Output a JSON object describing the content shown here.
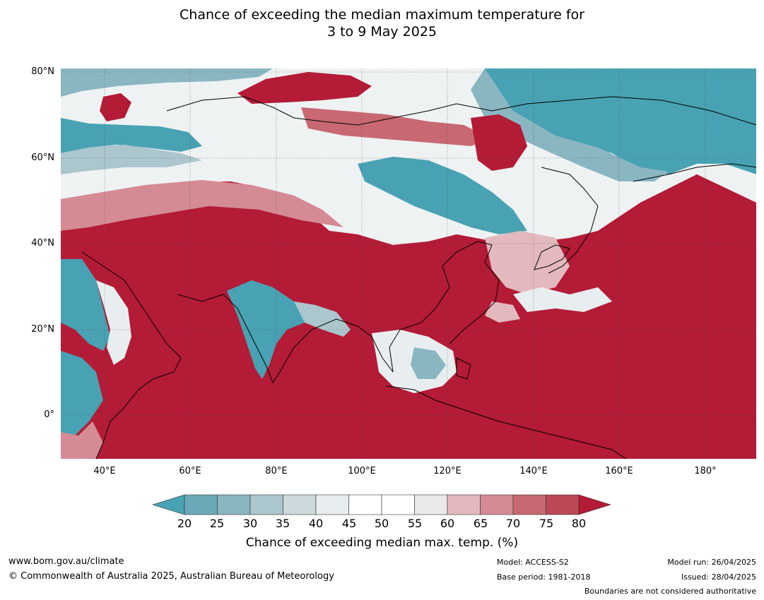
{
  "title": {
    "line1": "Chance of exceeding the median maximum temperature for",
    "line2": "3 to 9 May 2025"
  },
  "map": {
    "lat_labels": [
      "80°N",
      "60°N",
      "40°N",
      "20°N",
      "0°"
    ],
    "lon_labels": [
      "40°E",
      "60°E",
      "80°E",
      "100°E",
      "120°E",
      "140°E",
      "160°E",
      "180°"
    ]
  },
  "colorbar": {
    "ticks": [
      "20",
      "25",
      "30",
      "35",
      "40",
      "45",
      "50",
      "55",
      "60",
      "65",
      "70",
      "75",
      "80"
    ],
    "colors": [
      "#48a2b3",
      "#6ba9b8",
      "#8ab6c2",
      "#abc6cc",
      "#cdd9dc",
      "#e8eef0",
      "#ffffff",
      "#ffffff",
      "#e9e9e9",
      "#e3b9be",
      "#d48b94",
      "#c76872",
      "#bd4856",
      "#b31b36"
    ],
    "label": "Chance of exceeding median max. temp. (%)"
  },
  "footer": {
    "website": "www.bom.gov.au/climate",
    "copyright": "© Commonwealth of Australia 2025, Australian Bureau of Meteorology",
    "model": "Model: ACCESS-S2",
    "base_period": "Base period: 1981-2018",
    "model_run": "Model run: 26/04/2025",
    "issued": "Issued: 28/04/2025",
    "boundaries_note": "Boundaries are not considered authoritative"
  }
}
